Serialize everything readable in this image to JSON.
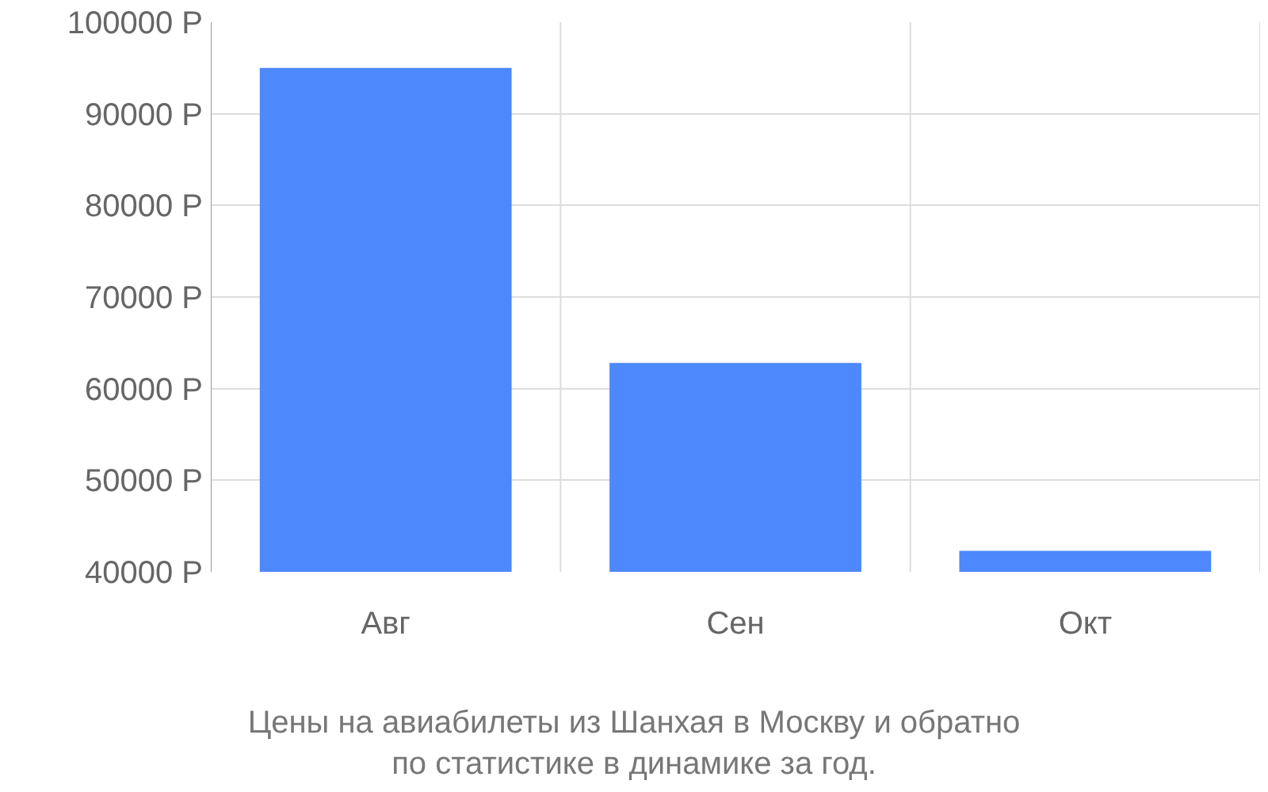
{
  "chart_data": {
    "type": "bar",
    "title": "Цены на авиабилеты из Шанхая в Москву и обратно\nпо статистике в динамике за год.",
    "categories": [
      "Авг",
      "Сен",
      "Окт"
    ],
    "values": [
      95000,
      62800,
      42300
    ],
    "color": "#4d88fc",
    "ylim": [
      40000,
      100000
    ],
    "yticks": [
      {
        "value": 40000,
        "label": "40000 Р"
      },
      {
        "value": 50000,
        "label": "50000 Р"
      },
      {
        "value": 60000,
        "label": "60000 Р"
      },
      {
        "value": 70000,
        "label": "70000 Р"
      },
      {
        "value": 80000,
        "label": "80000 Р"
      },
      {
        "value": 90000,
        "label": "90000 Р"
      },
      {
        "value": 100000,
        "label": "100000 Р"
      }
    ],
    "grid": true
  }
}
